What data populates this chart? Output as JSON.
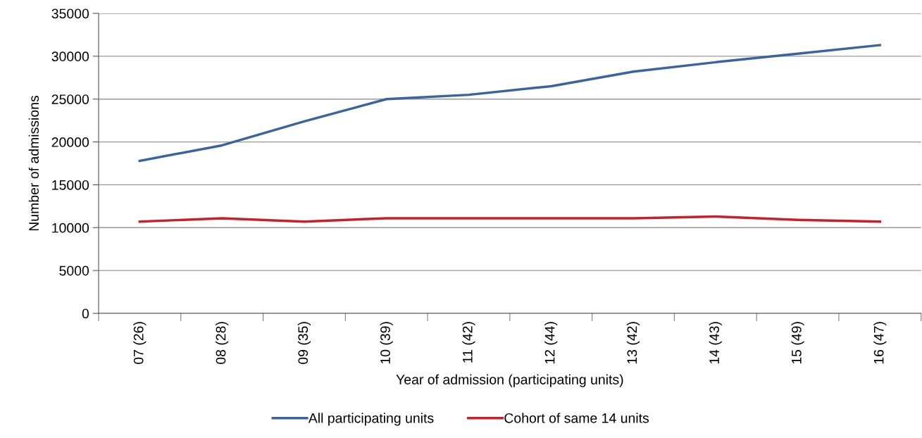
{
  "chart_data": {
    "type": "line",
    "categories": [
      "07 (26)",
      "08 (28)",
      "09 (35)",
      "10 (39)",
      "11 (42)",
      "12 (44)",
      "13 (42)",
      "14 (43)",
      "15 (49)",
      "16 (47)"
    ],
    "series": [
      {
        "name": "All participating units",
        "color": "#3a64a0",
        "values": [
          17800,
          19600,
          22400,
          25000,
          25500,
          26500,
          28200,
          29300,
          30300,
          31300
        ]
      },
      {
        "name": "Cohort of same 14 units",
        "color": "#c8202a",
        "values": [
          10700,
          11100,
          10700,
          11100,
          11100,
          11100,
          11100,
          11300,
          10900,
          10700
        ]
      }
    ],
    "xlabel": "Year of admission (participating units)",
    "ylabel": "Number of admissions",
    "ylim": [
      0,
      35000
    ],
    "yticks": [
      0,
      5000,
      10000,
      15000,
      20000,
      25000,
      30000,
      35000
    ],
    "grid": "y",
    "legend": "bottom",
    "marker": "none",
    "line_style": "solid"
  }
}
